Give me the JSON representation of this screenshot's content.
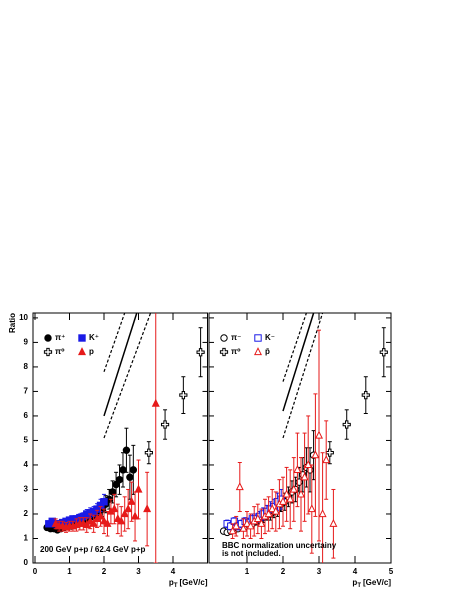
{
  "chart_data": [
    {
      "type": "scatter",
      "ylabel": "Ratio",
      "xlabel_symbol": "p",
      "xlabel_subscript": "T",
      "xlabel_unit": "[GeV/c]",
      "xlim": [
        0,
        5
      ],
      "xticks": [
        0,
        1,
        2,
        3,
        4
      ],
      "ylim": [
        0,
        10.2
      ],
      "yticks": [
        0,
        1,
        2,
        3,
        4,
        5,
        6,
        7,
        8,
        9,
        10
      ],
      "legend": "top-left",
      "annotations": [
        "200 GeV p+p / 62.4 GeV p+p"
      ],
      "lines": [
        {
          "style": "solid",
          "x": [
            2.0,
            2.95
          ],
          "y": [
            6.0,
            10.2
          ]
        },
        {
          "style": "dashed",
          "x": [
            2.0,
            2.6
          ],
          "y": [
            7.8,
            10.2
          ]
        },
        {
          "style": "dashed",
          "x": [
            2.0,
            3.35
          ],
          "y": [
            5.1,
            10.2
          ]
        }
      ],
      "series": [
        {
          "name": "π⁺",
          "color": "#000000",
          "marker": "filled-circle",
          "x": [
            0.35,
            0.45,
            0.55,
            0.65,
            0.75,
            0.85,
            0.95,
            1.05,
            1.15,
            1.25,
            1.35,
            1.45,
            1.55,
            1.65,
            1.75,
            1.85,
            1.95,
            2.05,
            2.15,
            2.25,
            2.35,
            2.45,
            2.55,
            2.65,
            2.75,
            2.85
          ],
          "values": [
            1.45,
            1.4,
            1.4,
            1.35,
            1.4,
            1.45,
            1.5,
            1.5,
            1.55,
            1.6,
            1.7,
            1.75,
            1.8,
            1.9,
            2.0,
            2.1,
            2.2,
            2.4,
            2.6,
            2.9,
            3.2,
            3.4,
            3.8,
            4.6,
            3.5,
            3.8
          ],
          "errors": [
            0.1,
            0.1,
            0.1,
            0.1,
            0.1,
            0.1,
            0.1,
            0.1,
            0.15,
            0.15,
            0.15,
            0.2,
            0.2,
            0.25,
            0.25,
            0.3,
            0.3,
            0.35,
            0.4,
            0.45,
            0.5,
            0.6,
            0.7,
            0.9,
            0.9,
            1.0
          ]
        },
        {
          "name": "π⁰",
          "color": "#000000",
          "marker": "cross",
          "x": [
            3.3,
            3.77,
            4.3,
            4.8
          ],
          "values": [
            4.5,
            5.65,
            6.85,
            8.6
          ],
          "errors": [
            0.45,
            0.6,
            0.75,
            1.0
          ]
        },
        {
          "name": "K⁺",
          "color": "#1a1ae6",
          "marker": "filled-square",
          "x": [
            0.4,
            0.5,
            0.6,
            0.7,
            0.8,
            0.9,
            1.0,
            1.1,
            1.2,
            1.3,
            1.4,
            1.5,
            1.6,
            1.7,
            1.8,
            1.9,
            2.0
          ],
          "values": [
            1.6,
            1.7,
            1.6,
            1.6,
            1.65,
            1.7,
            1.75,
            1.8,
            1.8,
            1.85,
            1.9,
            2.0,
            2.05,
            2.1,
            2.2,
            2.35,
            2.5
          ],
          "errors": [
            0.1,
            0.1,
            0.1,
            0.1,
            0.1,
            0.1,
            0.1,
            0.12,
            0.12,
            0.15,
            0.15,
            0.18,
            0.2,
            0.2,
            0.22,
            0.25,
            0.3
          ]
        },
        {
          "name": "p",
          "color": "#e61a1a",
          "marker": "filled-triangle",
          "x": [
            0.6,
            0.7,
            0.8,
            0.9,
            1.0,
            1.1,
            1.2,
            1.3,
            1.4,
            1.5,
            1.6,
            1.7,
            1.8,
            1.9,
            2.0,
            2.1,
            2.2,
            2.3,
            2.4,
            2.5,
            2.6,
            2.7,
            2.8,
            2.9,
            3.0,
            3.25,
            3.5
          ],
          "values": [
            1.6,
            1.5,
            1.5,
            1.45,
            1.5,
            1.5,
            1.55,
            1.6,
            1.6,
            1.55,
            1.7,
            1.6,
            1.8,
            1.9,
            1.7,
            1.6,
            2.1,
            2.2,
            1.8,
            1.7,
            2.0,
            2.2,
            2.5,
            1.9,
            3.0,
            2.2,
            6.5
          ],
          "errors": [
            0.2,
            0.2,
            0.2,
            0.2,
            0.2,
            0.2,
            0.25,
            0.25,
            0.25,
            0.3,
            0.3,
            0.35,
            0.35,
            0.4,
            0.5,
            0.5,
            0.5,
            0.6,
            0.6,
            0.6,
            0.7,
            0.8,
            0.8,
            1.0,
            1.2,
            1.5,
            6.5
          ]
        }
      ]
    },
    {
      "type": "scatter",
      "xlabel_symbol": "p",
      "xlabel_subscript": "T",
      "xlabel_unit": "[GeV/c]",
      "xlim": [
        0,
        5
      ],
      "xticks": [
        1,
        2,
        3,
        4,
        5
      ],
      "ylim": [
        0,
        10.2
      ],
      "legend": "top-left",
      "annotations": [
        "BBC normalization uncertainy",
        "is not included."
      ],
      "lines": [
        {
          "style": "solid",
          "x": [
            2.0,
            2.85
          ],
          "y": [
            6.2,
            10.2
          ]
        },
        {
          "style": "dashed",
          "x": [
            2.0,
            2.65
          ],
          "y": [
            7.4,
            10.2
          ]
        },
        {
          "style": "dashed",
          "x": [
            2.0,
            3.1
          ],
          "y": [
            5.1,
            10.2
          ]
        }
      ],
      "series": [
        {
          "name": "π⁻",
          "color": "#000000",
          "marker": "open-circle",
          "x": [
            0.35,
            0.45,
            0.55,
            0.65,
            0.75,
            0.85,
            0.95,
            1.05,
            1.15,
            1.25,
            1.35,
            1.45,
            1.55,
            1.65,
            1.75,
            1.85,
            1.95,
            2.05,
            2.15,
            2.25,
            2.35,
            2.45,
            2.55,
            2.65,
            2.75,
            2.85
          ],
          "values": [
            1.3,
            1.25,
            1.3,
            1.35,
            1.4,
            1.45,
            1.5,
            1.55,
            1.6,
            1.7,
            1.75,
            1.85,
            1.95,
            2.0,
            2.1,
            2.2,
            2.4,
            2.5,
            2.7,
            2.9,
            3.0,
            3.3,
            3.6,
            3.9,
            3.8,
            4.4
          ],
          "errors": [
            0.1,
            0.1,
            0.1,
            0.1,
            0.1,
            0.1,
            0.1,
            0.12,
            0.14,
            0.15,
            0.17,
            0.2,
            0.2,
            0.25,
            0.25,
            0.3,
            0.3,
            0.35,
            0.4,
            0.45,
            0.5,
            0.6,
            0.7,
            0.8,
            0.9,
            1.0
          ]
        },
        {
          "name": "π⁰",
          "color": "#000000",
          "marker": "cross",
          "x": [
            3.3,
            3.77,
            4.3,
            4.8
          ],
          "values": [
            4.5,
            5.65,
            6.85,
            8.6
          ],
          "errors": [
            0.45,
            0.6,
            0.75,
            1.0
          ]
        },
        {
          "name": "K⁻",
          "color": "#1a1ae6",
          "marker": "open-square",
          "x": [
            0.45,
            0.55,
            0.65,
            0.75,
            0.85,
            0.95,
            1.05,
            1.15,
            1.25,
            1.35,
            1.45,
            1.55,
            1.65,
            1.75,
            1.85,
            1.95
          ],
          "values": [
            1.6,
            1.5,
            1.7,
            1.5,
            1.6,
            1.7,
            1.65,
            1.8,
            1.8,
            1.9,
            2.0,
            2.1,
            2.2,
            2.3,
            2.5,
            2.6
          ],
          "errors": [
            0.15,
            0.15,
            0.15,
            0.15,
            0.15,
            0.15,
            0.15,
            0.2,
            0.2,
            0.2,
            0.25,
            0.25,
            0.3,
            0.3,
            0.35,
            0.4
          ]
        },
        {
          "name": "p̄",
          "color": "#e61a1a",
          "marker": "open-triangle",
          "x": [
            0.6,
            0.7,
            0.8,
            0.9,
            1.0,
            1.1,
            1.2,
            1.3,
            1.4,
            1.5,
            1.6,
            1.7,
            1.8,
            1.9,
            2.0,
            2.1,
            2.2,
            2.3,
            2.4,
            2.5,
            2.6,
            2.7,
            2.8,
            2.9,
            3.0,
            3.1,
            3.2,
            3.4
          ],
          "values": [
            1.3,
            1.5,
            3.1,
            1.4,
            1.6,
            1.5,
            1.7,
            1.8,
            1.6,
            1.9,
            2.0,
            2.2,
            2.1,
            2.4,
            2.5,
            2.8,
            2.6,
            3.0,
            3.8,
            2.8,
            3.5,
            4.0,
            2.2,
            4.4,
            5.2,
            2.0,
            4.2,
            1.6
          ],
          "errors": [
            0.3,
            0.4,
            1.0,
            0.4,
            0.5,
            0.5,
            0.6,
            0.6,
            0.6,
            0.7,
            0.7,
            0.8,
            0.8,
            1.0,
            1.0,
            1.1,
            1.2,
            1.3,
            1.5,
            1.5,
            1.8,
            2.0,
            1.8,
            2.5,
            4.3,
            2.5,
            1.6,
            1.4
          ]
        }
      ]
    }
  ]
}
